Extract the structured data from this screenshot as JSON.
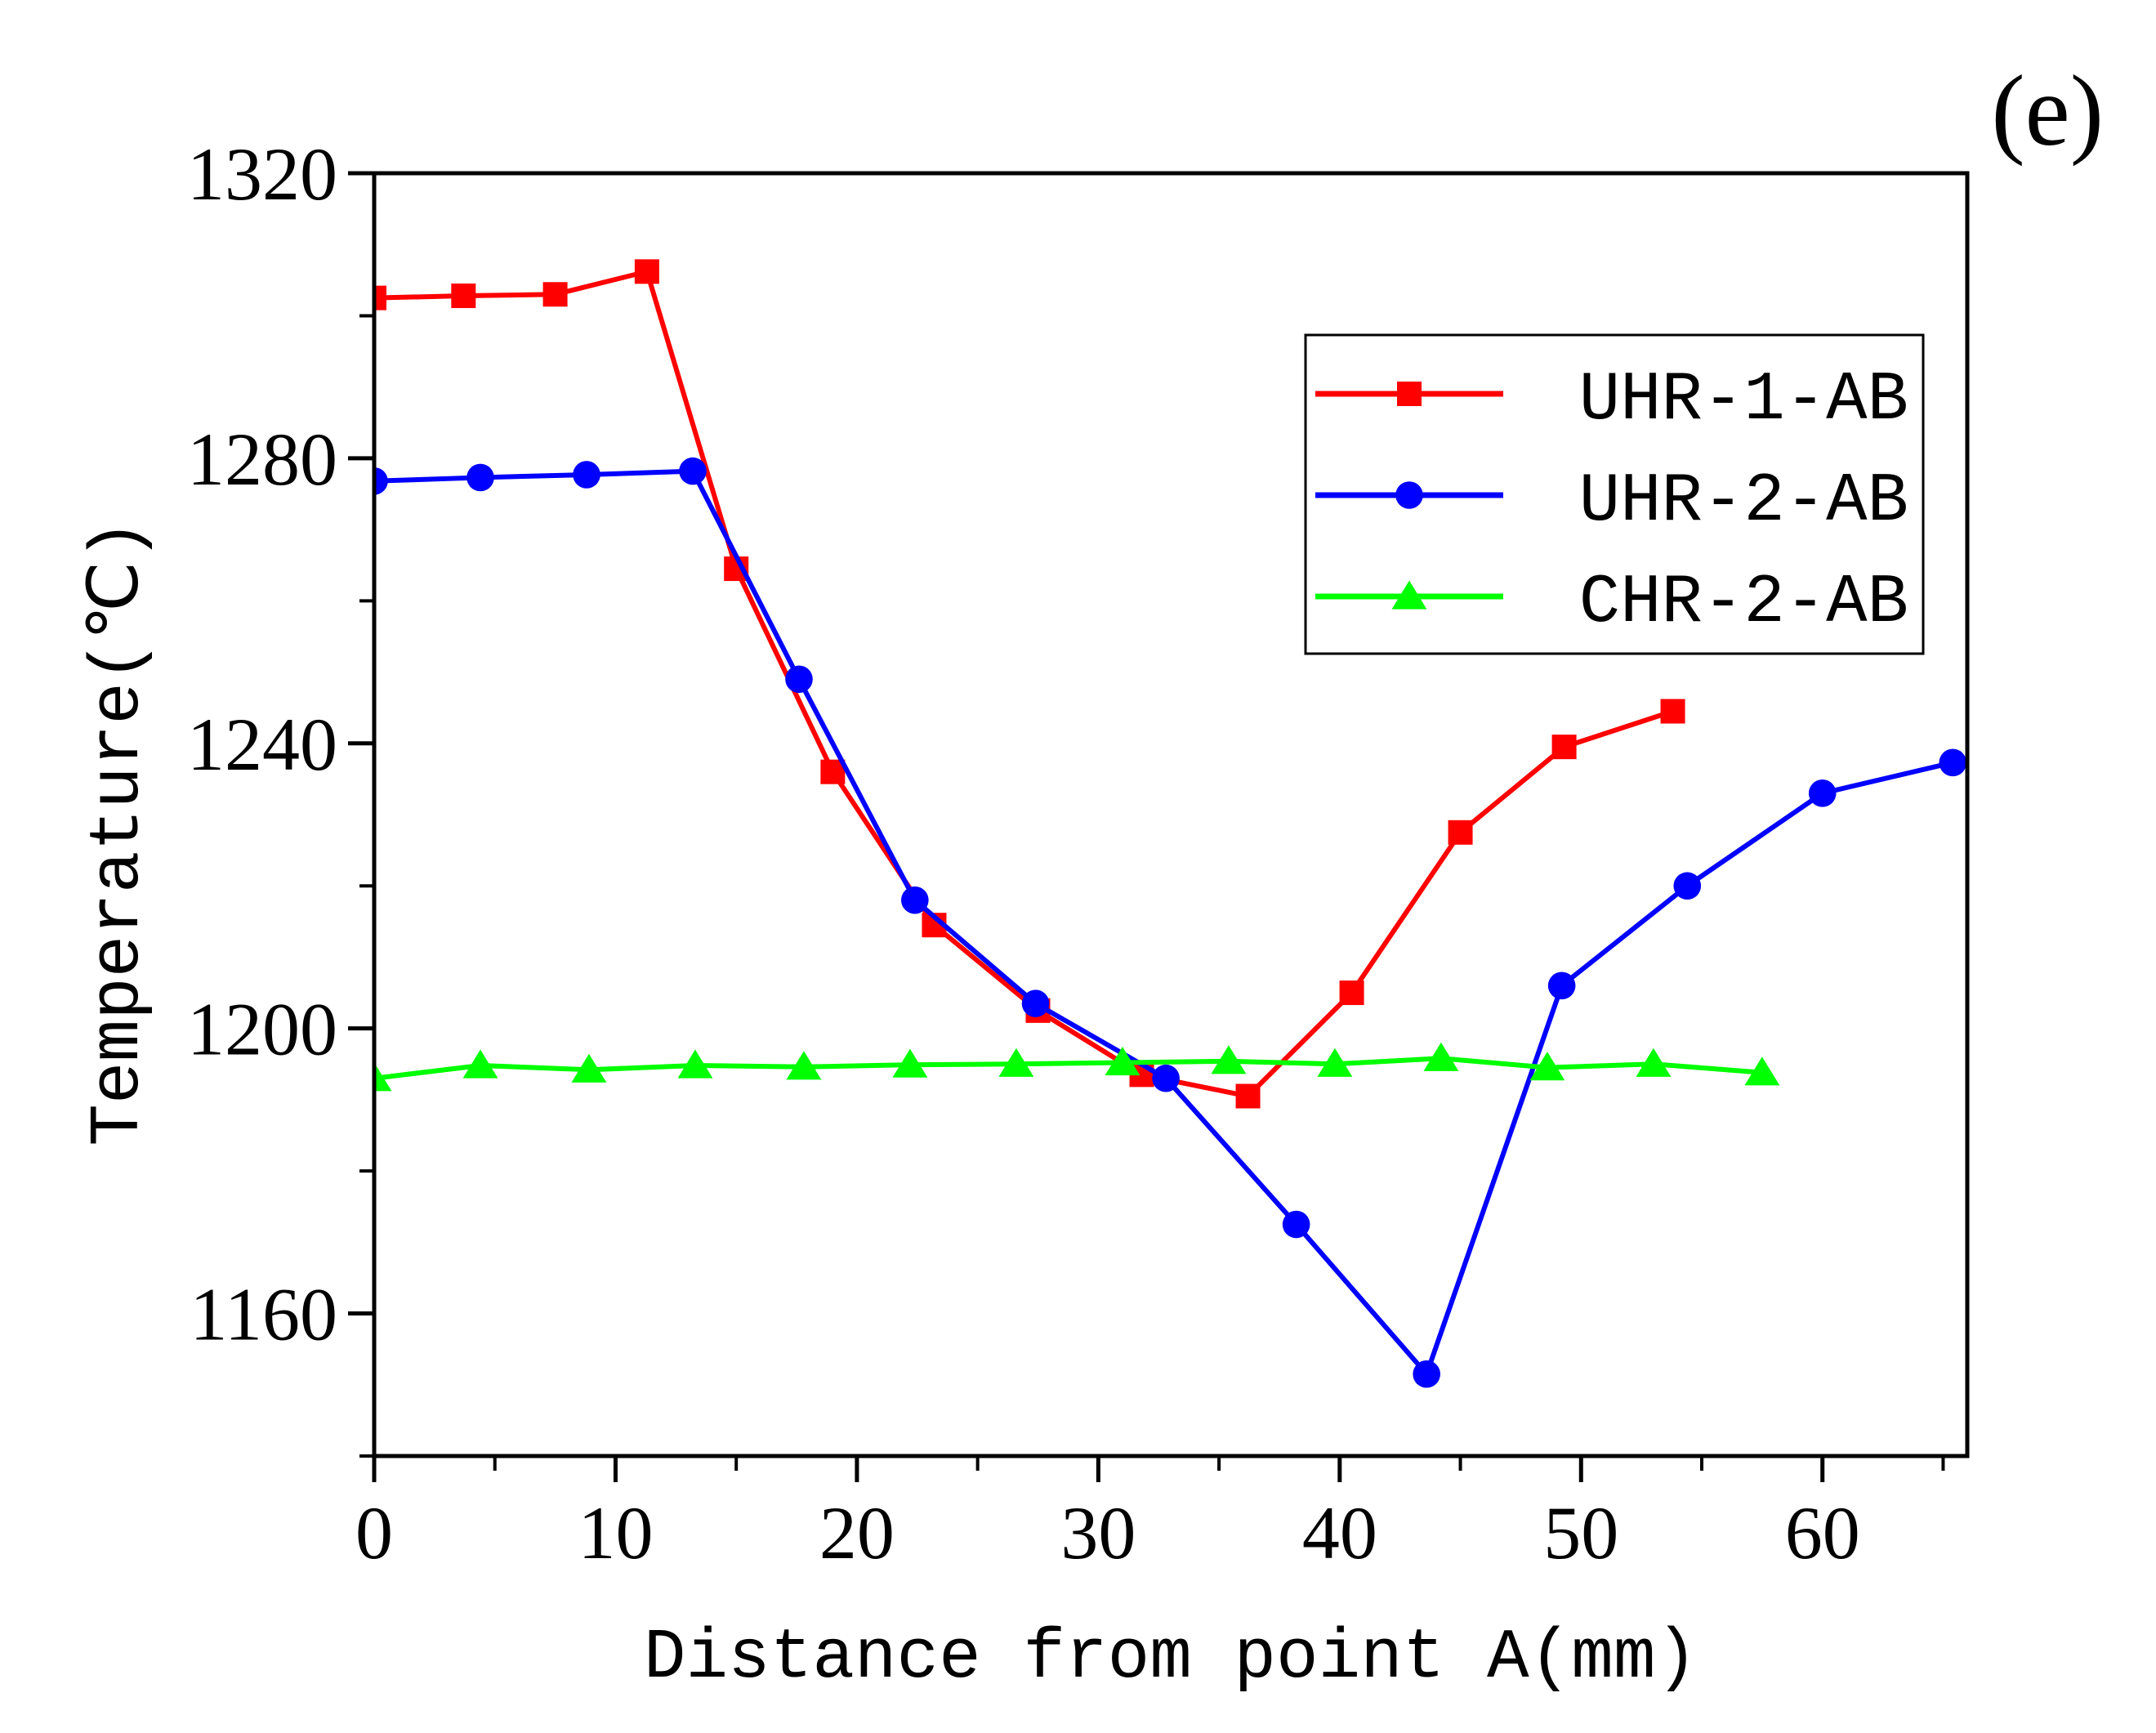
{
  "panel_label": "(e)",
  "chart_data": {
    "type": "line",
    "title": "",
    "xlabel": "Distance from point A(mm)",
    "ylabel": "Temperature(℃)",
    "xlim": [
      0,
      66
    ],
    "ylim": [
      1140,
      1320
    ],
    "x_ticks": [
      0,
      10,
      20,
      30,
      40,
      50,
      60
    ],
    "x_tick_labels": [
      "0",
      "10",
      "20",
      "30",
      "40",
      "50",
      "60"
    ],
    "x_minor_ticks": [
      5,
      15,
      25,
      35,
      45,
      55,
      65
    ],
    "y_ticks": [
      1160,
      1200,
      1240,
      1280,
      1320
    ],
    "y_tick_labels": [
      "1160",
      "1200",
      "1240",
      "1280",
      "1320"
    ],
    "y_minor_ticks": [
      1140,
      1180,
      1220,
      1260,
      1300
    ],
    "grid": false,
    "legend_position": "top-right",
    "series": [
      {
        "name": "UHR-1-AB",
        "color": "#ff0000",
        "marker": "square",
        "x": [
          0,
          3.7,
          7.5,
          11.3,
          15.0,
          19.0,
          23.2,
          27.5,
          31.8,
          36.2,
          40.5,
          45.0,
          49.3,
          53.8
        ],
        "y": [
          1302.5,
          1302.8,
          1303.0,
          1306.2,
          1264.5,
          1236.0,
          1214.5,
          1202.5,
          1193.5,
          1190.5,
          1205.0,
          1227.5,
          1239.5,
          1244.5
        ]
      },
      {
        "name": "UHR-2-AB",
        "color": "#0000ff",
        "marker": "circle",
        "x": [
          0,
          4.4,
          8.8,
          13.2,
          17.6,
          22.4,
          27.4,
          32.8,
          38.2,
          43.6,
          49.2,
          54.4,
          60.0,
          65.4
        ],
        "y": [
          1276.8,
          1277.3,
          1277.7,
          1278.2,
          1249.0,
          1218.0,
          1203.5,
          1193.0,
          1172.5,
          1151.5,
          1206.0,
          1220.0,
          1233.0,
          1237.3
        ]
      },
      {
        "name": "CHR-2-AB",
        "color": "#00ff00",
        "marker": "triangle",
        "x": [
          0,
          4.4,
          8.9,
          13.3,
          17.8,
          22.2,
          26.6,
          31.0,
          35.4,
          39.8,
          44.2,
          48.6,
          53.0,
          57.5
        ],
        "y": [
          1193.0,
          1194.8,
          1194.2,
          1194.8,
          1194.6,
          1194.9,
          1195.0,
          1195.2,
          1195.4,
          1195.0,
          1195.8,
          1194.5,
          1195.0,
          1193.8
        ]
      }
    ]
  }
}
